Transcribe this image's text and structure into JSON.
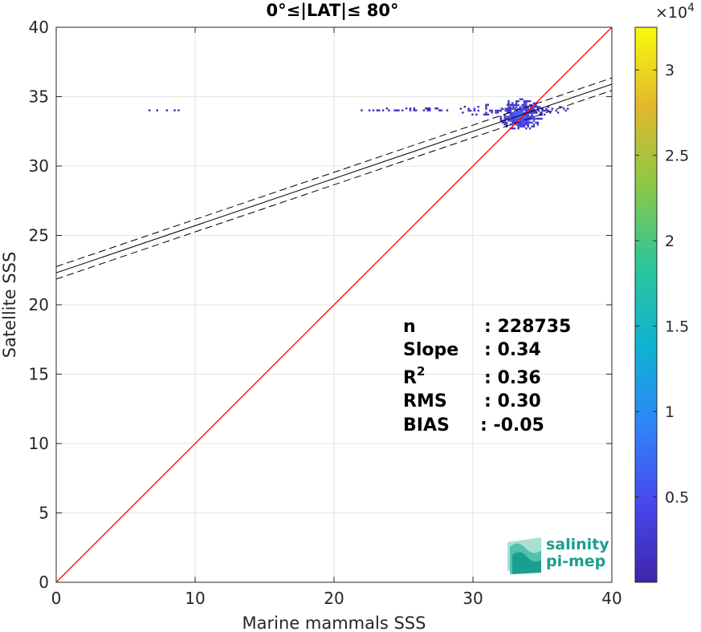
{
  "chart_data": {
    "type": "heatmap",
    "title": "0°≤|LAT|≤ 80°",
    "xlabel": "Marine mammals SSS",
    "ylabel": "Satellite SSS",
    "xlim": [
      0,
      40
    ],
    "ylim": [
      0,
      40
    ],
    "xticks": [
      "0",
      "10",
      "20",
      "30",
      "40"
    ],
    "yticks": [
      "0",
      "5",
      "10",
      "15",
      "20",
      "25",
      "30",
      "35",
      "40"
    ],
    "grid": true,
    "one_to_one_line": {
      "from": [
        0,
        0
      ],
      "to": [
        40,
        40
      ],
      "color": "#ff0000"
    },
    "regression": {
      "fit": {
        "x": [
          0,
          40
        ],
        "y": [
          22.3,
          35.9
        ]
      },
      "upper": {
        "x": [
          0,
          40
        ],
        "y": [
          22.75,
          36.35
        ]
      },
      "lower": {
        "x": [
          0,
          40
        ],
        "y": [
          21.85,
          35.45
        ]
      }
    },
    "colorbar": {
      "range": [
        0,
        32500
      ],
      "ticks": [
        "0.5",
        "1",
        "1.5",
        "2",
        "2.5",
        "3"
      ],
      "tick_values": [
        5000,
        10000,
        15000,
        20000,
        25000,
        30000
      ],
      "exponent_label": "×10",
      "exponent_power": "4",
      "colormap": [
        "#3e26a8",
        "#4748f0",
        "#2e87f7",
        "#0fb3d2",
        "#2dc69b",
        "#8ac946",
        "#e2b82b",
        "#f8fa0d"
      ]
    },
    "density_clusters": [
      {
        "x": [
          5.8,
          11.0
        ],
        "y": [
          33.8,
          34.0
        ],
        "level": 0.02
      },
      {
        "x": [
          21.5,
          29.5
        ],
        "y": [
          33.8,
          34.1
        ],
        "level": 0.03
      },
      {
        "x": [
          28.5,
          37.0
        ],
        "y": [
          33.5,
          34.4
        ],
        "level": 0.05
      },
      {
        "x": [
          31.8,
          35.0
        ],
        "y": [
          32.5,
          34.8
        ],
        "level": 0.12
      },
      {
        "x": [
          32.5,
          34.2
        ],
        "y": [
          33.0,
          34.2
        ],
        "level": 0.25
      }
    ],
    "stats": {
      "rows": [
        {
          "label": "n",
          "value": ": 228735"
        },
        {
          "label": "Slope",
          "value": ": 0.34"
        },
        {
          "label": "R",
          "sup": "2",
          "value": ": 0.36"
        },
        {
          "label": "RMS",
          "value": ": 0.30"
        },
        {
          "label": "BIAS",
          "value": ": -0.05"
        }
      ]
    }
  },
  "logo": {
    "line1": "salinity",
    "line2": "pi-mep"
  },
  "colors": {
    "one_to_one": "#ff0000",
    "fit": "#000000",
    "grid": "#e6e6e6",
    "logo": "#1a9e8f"
  }
}
